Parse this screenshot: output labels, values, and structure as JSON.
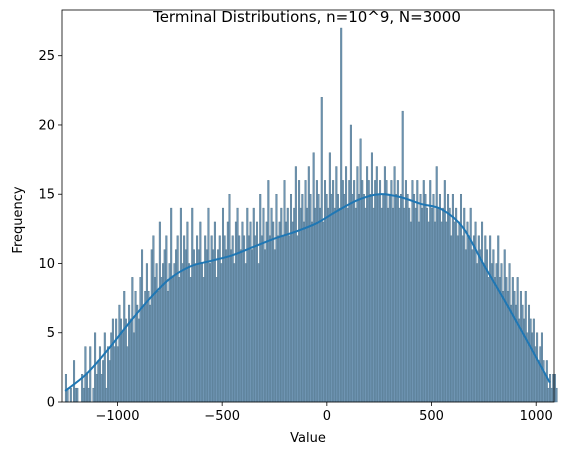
{
  "chart_data": {
    "type": "histogram",
    "title": "Terminal Distributions, n=10^9, N=3000",
    "xlabel": "Value",
    "ylabel": "Frequency",
    "xlim": [
      -1265,
      1085
    ],
    "ylim": [
      0,
      28.3
    ],
    "xticks": [
      -1000,
      -500,
      0,
      500,
      1000
    ],
    "xtick_labels": [
      "−1000",
      "−500",
      "0",
      "500",
      "1000"
    ],
    "yticks": [
      0,
      5,
      10,
      15,
      20,
      25
    ],
    "ytick_labels": [
      "0",
      "5",
      "10",
      "15",
      "20",
      "25"
    ],
    "grid": false,
    "legend": "none",
    "bins": {
      "start": -1250,
      "end": 1070,
      "count": 300
    },
    "counts": [
      2,
      1,
      0,
      1,
      0,
      3,
      1,
      1,
      0,
      0,
      2,
      1,
      4,
      2,
      1,
      4,
      0,
      1,
      5,
      2,
      3,
      4,
      2,
      3,
      5,
      1,
      4,
      3,
      5,
      6,
      4,
      6,
      4,
      7,
      6,
      5,
      8,
      6,
      4,
      7,
      6,
      9,
      5,
      8,
      7,
      6,
      9,
      11,
      7,
      8,
      10,
      8,
      7,
      11,
      12,
      9,
      10,
      8,
      13,
      9,
      10,
      11,
      12,
      8,
      10,
      14,
      9,
      10,
      11,
      12,
      9,
      14,
      10,
      12,
      11,
      13,
      10,
      9,
      14,
      11,
      10,
      12,
      11,
      13,
      10,
      9,
      12,
      11,
      14,
      10,
      12,
      11,
      13,
      9,
      11,
      12,
      10,
      14,
      12,
      11,
      13,
      15,
      11,
      12,
      10,
      13,
      14,
      12,
      11,
      13,
      12,
      10,
      14,
      12,
      13,
      11,
      14,
      12,
      13,
      10,
      15,
      12,
      14,
      11,
      13,
      16,
      12,
      14,
      13,
      11,
      15,
      12,
      13,
      14,
      12,
      16,
      13,
      14,
      12,
      15,
      13,
      14,
      17,
      12,
      16,
      14,
      15,
      13,
      16,
      14,
      17,
      15,
      13,
      18,
      14,
      16,
      15,
      14,
      22,
      13,
      16,
      15,
      14,
      18,
      15,
      16,
      14,
      17,
      15,
      14,
      27,
      16,
      15,
      17,
      14,
      16,
      20,
      15,
      16,
      14,
      17,
      15,
      19,
      16,
      15,
      14,
      17,
      16,
      15,
      18,
      14,
      16,
      17,
      15,
      16,
      14,
      15,
      17,
      16,
      14,
      15,
      16,
      14,
      17,
      15,
      16,
      14,
      15,
      21,
      14,
      16,
      15,
      14,
      13,
      16,
      15,
      14,
      16,
      13,
      15,
      14,
      16,
      15,
      14,
      13,
      16,
      14,
      15,
      13,
      17,
      14,
      15,
      13,
      14,
      16,
      13,
      15,
      14,
      12,
      15,
      13,
      14,
      12,
      13,
      15,
      12,
      14,
      11,
      13,
      12,
      14,
      11,
      12,
      13,
      10,
      12,
      11,
      13,
      10,
      12,
      11,
      9,
      12,
      10,
      11,
      9,
      10,
      12,
      9,
      10,
      8,
      11,
      9,
      8,
      10,
      7,
      9,
      8,
      7,
      9,
      6,
      8,
      7,
      6,
      8,
      5,
      7,
      6,
      5,
      6,
      4,
      5,
      3,
      4,
      5,
      3,
      2,
      3,
      1,
      2,
      1,
      2,
      2,
      1
    ],
    "kde": {
      "x": [
        -1250,
        -1150,
        -1050,
        -950,
        -850,
        -750,
        -650,
        -550,
        -450,
        -350,
        -250,
        -150,
        -50,
        50,
        150,
        250,
        350,
        450,
        550,
        650,
        750,
        850,
        950,
        1065
      ],
      "y": [
        0.8,
        2.0,
        3.7,
        5.6,
        7.4,
        8.9,
        9.8,
        10.2,
        10.6,
        11.2,
        11.8,
        12.3,
        12.9,
        13.8,
        14.6,
        15.0,
        14.8,
        14.3,
        13.9,
        12.6,
        9.9,
        7.3,
        4.6,
        1.4
      ]
    },
    "colors": {
      "bar_fill": "#6f95b3",
      "bar_edge": "#4f7389",
      "kde": "#1f77b4"
    }
  }
}
